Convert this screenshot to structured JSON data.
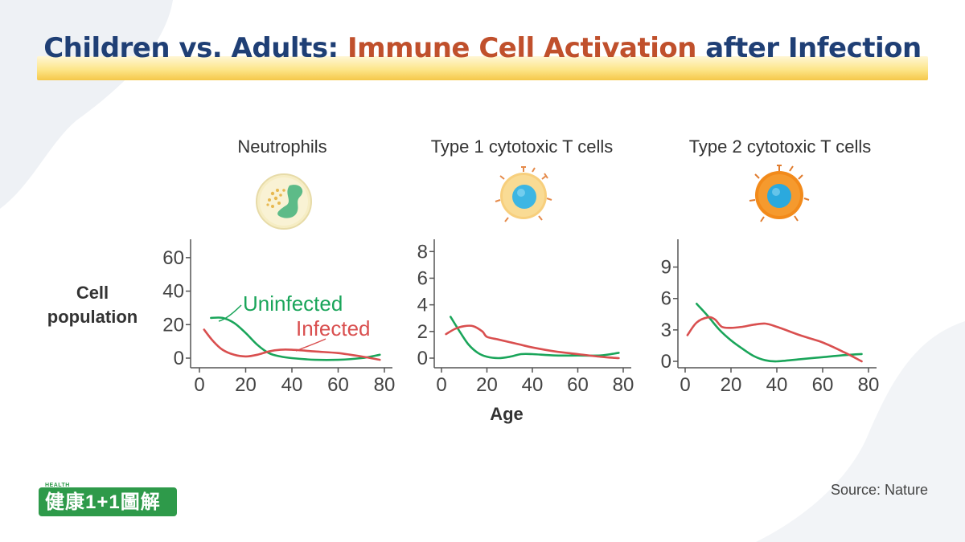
{
  "header": {
    "title_part1": "Children vs. Adults: ",
    "title_part2": "Immune Cell Activation",
    "title_part3": " after Infection"
  },
  "y_label_line1": "Cell",
  "y_label_line2": "population",
  "x_label": "Age",
  "source": "Source: Nature",
  "logo": {
    "text": "健康1+1圖解",
    "small_text": "HEALTH"
  },
  "colors": {
    "uninfected": "#1aa55a",
    "infected": "#d94f4f",
    "title_blue": "#1f3f75",
    "title_accent": "#c0502c"
  },
  "chart_data": [
    {
      "type": "line",
      "title": "Neutrophils",
      "icon": "neutrophil-icon",
      "xlabel": "Age",
      "ylabel": "Cell population",
      "xlim": [
        0,
        80
      ],
      "ylim": [
        0,
        70
      ],
      "xticks": [
        0,
        20,
        40,
        60,
        80
      ],
      "yticks": [
        0,
        20,
        40,
        60
      ],
      "annotations": [
        "Uninfected",
        "Infected"
      ],
      "series": [
        {
          "name": "Uninfected",
          "color": "#1aa55a",
          "x": [
            5,
            10,
            15,
            20,
            25,
            30,
            35,
            40,
            50,
            60,
            70,
            78
          ],
          "y": [
            24,
            24,
            21,
            15,
            8,
            3,
            1,
            0,
            -1,
            -1,
            0,
            2
          ]
        },
        {
          "name": "Infected",
          "color": "#d94f4f",
          "x": [
            2,
            6,
            10,
            15,
            20,
            25,
            30,
            35,
            40,
            50,
            60,
            70,
            78
          ],
          "y": [
            17,
            10,
            5,
            2,
            1,
            2,
            4,
            5,
            5,
            4,
            3,
            1,
            -1
          ]
        }
      ]
    },
    {
      "type": "line",
      "title": "Type 1 cytotoxic T cells",
      "icon": "type1-t-cell-icon",
      "xlabel": "Age",
      "xlim": [
        0,
        80
      ],
      "ylim": [
        0,
        8.8
      ],
      "xticks": [
        0,
        20,
        40,
        60,
        80
      ],
      "yticks": [
        0,
        2,
        4,
        6,
        8
      ],
      "series": [
        {
          "name": "Uninfected",
          "color": "#1aa55a",
          "x": [
            4,
            8,
            12,
            16,
            20,
            25,
            30,
            35,
            40,
            50,
            60,
            70,
            78
          ],
          "y": [
            3.1,
            2.0,
            1.0,
            0.4,
            0.1,
            0.0,
            0.1,
            0.3,
            0.3,
            0.2,
            0.2,
            0.2,
            0.4
          ]
        },
        {
          "name": "Infected",
          "color": "#d94f4f",
          "x": [
            2,
            6,
            10,
            14,
            18,
            20,
            25,
            30,
            35,
            40,
            50,
            60,
            70,
            78
          ],
          "y": [
            1.8,
            2.2,
            2.4,
            2.4,
            2.0,
            1.6,
            1.4,
            1.2,
            1.0,
            0.8,
            0.5,
            0.3,
            0.1,
            0.0
          ]
        }
      ]
    },
    {
      "type": "line",
      "title": "Type 2 cytotoxic T cells",
      "icon": "type2-t-cell-icon",
      "xlabel": "Age",
      "xlim": [
        0,
        80
      ],
      "ylim": [
        0,
        11.5
      ],
      "xticks": [
        0,
        20,
        40,
        60,
        80
      ],
      "yticks": [
        0,
        3,
        6,
        9
      ],
      "series": [
        {
          "name": "Uninfected",
          "color": "#1aa55a",
          "x": [
            5,
            10,
            15,
            20,
            25,
            30,
            35,
            40,
            50,
            60,
            70,
            77
          ],
          "y": [
            5.5,
            4.3,
            3.0,
            2.0,
            1.2,
            0.5,
            0.1,
            0.0,
            0.2,
            0.4,
            0.6,
            0.7
          ]
        },
        {
          "name": "Infected",
          "color": "#d94f4f",
          "x": [
            1,
            5,
            10,
            13,
            16,
            20,
            25,
            30,
            35,
            40,
            50,
            60,
            70,
            77
          ],
          "y": [
            2.5,
            3.7,
            4.2,
            4.0,
            3.3,
            3.2,
            3.3,
            3.5,
            3.6,
            3.3,
            2.5,
            1.8,
            0.8,
            0.0
          ]
        }
      ]
    }
  ]
}
